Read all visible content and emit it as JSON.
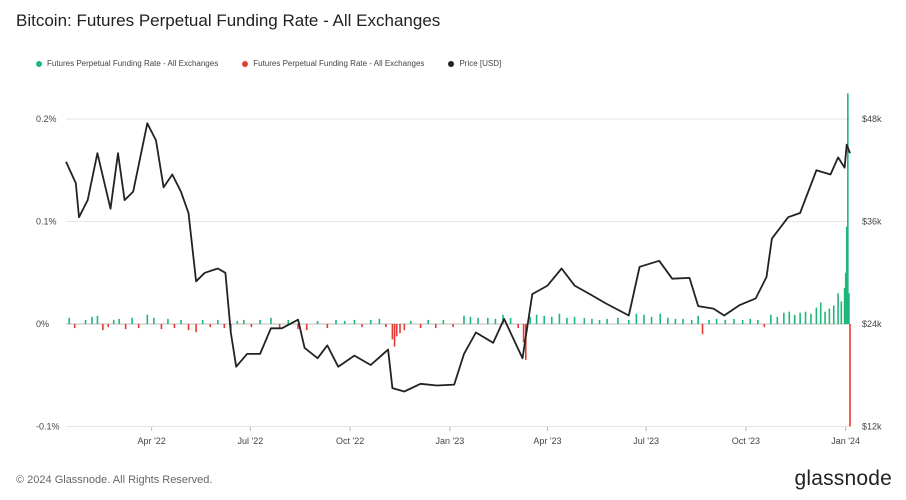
{
  "title": "Bitcoin: Futures Perpetual Funding Rate - All Exchanges",
  "footer": "© 2024 Glassnode. All Rights Reserved.",
  "brand": "glassnode",
  "colors": {
    "positive": "#1fb67a",
    "negative": "#e53935",
    "price": "#222222",
    "grid": "#e6e6e6"
  },
  "legend": [
    {
      "label": "Futures Perpetual Funding Rate - All Exchanges",
      "color": "#1fb67a"
    },
    {
      "label": "Futures Perpetual Funding Rate - All Exchanges",
      "color": "#e53935"
    },
    {
      "label": "Price [USD]",
      "color": "#222222"
    }
  ],
  "chart_data": {
    "type": "bar+line",
    "title": "Bitcoin: Futures Perpetual Funding Rate - All Exchanges",
    "x_tick_labels": [
      "Apr '22",
      "Jul '22",
      "Oct '22",
      "Jan '23",
      "Apr '23",
      "Jul '23",
      "Oct '23",
      "Jan '24"
    ],
    "x_range": [
      "2022-01-12",
      "2024-01-05"
    ],
    "left_axis": {
      "tick_labels": [
        "0.2%",
        "0.1%",
        "0%",
        "-0.1%"
      ],
      "ticks": [
        0.2,
        0.1,
        0,
        -0.1
      ],
      "range": [
        -0.1,
        0.2
      ]
    },
    "right_axis": {
      "tick_labels": [
        "$48k",
        "$36k",
        "$24k",
        "$12k"
      ],
      "ticks": [
        48000,
        36000,
        24000,
        12000
      ],
      "range": [
        12000,
        48000
      ]
    },
    "grid": true,
    "legend_position": "top-left",
    "series": [
      {
        "name": "Price [USD]",
        "kind": "line",
        "axis": "right",
        "points": [
          [
            "2022-01-12",
            43000
          ],
          [
            "2022-01-21",
            40500
          ],
          [
            "2022-01-24",
            36500
          ],
          [
            "2022-02-01",
            38500
          ],
          [
            "2022-02-10",
            44000
          ],
          [
            "2022-02-22",
            37500
          ],
          [
            "2022-03-01",
            44000
          ],
          [
            "2022-03-07",
            38500
          ],
          [
            "2022-03-15",
            39500
          ],
          [
            "2022-03-28",
            47500
          ],
          [
            "2022-04-05",
            45500
          ],
          [
            "2022-04-12",
            40000
          ],
          [
            "2022-04-20",
            41500
          ],
          [
            "2022-04-28",
            39500
          ],
          [
            "2022-05-05",
            37000
          ],
          [
            "2022-05-12",
            29000
          ],
          [
            "2022-05-20",
            30000
          ],
          [
            "2022-06-01",
            30500
          ],
          [
            "2022-06-08",
            30000
          ],
          [
            "2022-06-13",
            23000
          ],
          [
            "2022-06-18",
            19000
          ],
          [
            "2022-06-28",
            20500
          ],
          [
            "2022-07-10",
            20500
          ],
          [
            "2022-07-20",
            23500
          ],
          [
            "2022-07-30",
            23500
          ],
          [
            "2022-08-14",
            24500
          ],
          [
            "2022-08-20",
            21200
          ],
          [
            "2022-09-01",
            20000
          ],
          [
            "2022-09-10",
            21500
          ],
          [
            "2022-09-20",
            19000
          ],
          [
            "2022-10-05",
            20300
          ],
          [
            "2022-10-20",
            19200
          ],
          [
            "2022-11-05",
            21000
          ],
          [
            "2022-11-09",
            16500
          ],
          [
            "2022-11-20",
            16100
          ],
          [
            "2022-12-05",
            17000
          ],
          [
            "2022-12-20",
            16800
          ],
          [
            "2023-01-05",
            16900
          ],
          [
            "2023-01-14",
            20500
          ],
          [
            "2023-01-25",
            23000
          ],
          [
            "2023-02-10",
            21800
          ],
          [
            "2023-02-20",
            24600
          ],
          [
            "2023-03-09",
            20000
          ],
          [
            "2023-03-18",
            27500
          ],
          [
            "2023-04-01",
            28500
          ],
          [
            "2023-04-14",
            30500
          ],
          [
            "2023-04-26",
            28500
          ],
          [
            "2023-05-10",
            27500
          ],
          [
            "2023-05-25",
            26400
          ],
          [
            "2023-06-15",
            25000
          ],
          [
            "2023-06-25",
            30700
          ],
          [
            "2023-07-13",
            31400
          ],
          [
            "2023-07-25",
            29300
          ],
          [
            "2023-08-10",
            29400
          ],
          [
            "2023-08-18",
            26100
          ],
          [
            "2023-09-01",
            25800
          ],
          [
            "2023-09-11",
            25000
          ],
          [
            "2023-09-25",
            26200
          ],
          [
            "2023-10-10",
            27000
          ],
          [
            "2023-10-20",
            29500
          ],
          [
            "2023-10-25",
            34000
          ],
          [
            "2023-11-09",
            36500
          ],
          [
            "2023-11-20",
            37000
          ],
          [
            "2023-12-05",
            42000
          ],
          [
            "2023-12-18",
            41500
          ],
          [
            "2023-12-25",
            43500
          ],
          [
            "2023-12-31",
            42300
          ],
          [
            "2024-01-02",
            45000
          ],
          [
            "2024-01-05",
            44000
          ]
        ]
      },
      {
        "name": "Futures Perpetual Funding Rate - All Exchanges",
        "kind": "bar",
        "axis": "left",
        "note": "daily funding rate (%), green when positive, red when negative",
        "points": [
          [
            "2022-01-15",
            0.006
          ],
          [
            "2022-01-20",
            -0.004
          ],
          [
            "2022-01-30",
            0.004
          ],
          [
            "2022-02-05",
            0.007
          ],
          [
            "2022-02-10",
            0.008
          ],
          [
            "2022-02-15",
            -0.006
          ],
          [
            "2022-02-20",
            -0.003
          ],
          [
            "2022-02-25",
            0.004
          ],
          [
            "2022-03-02",
            0.005
          ],
          [
            "2022-03-08",
            -0.005
          ],
          [
            "2022-03-14",
            0.006
          ],
          [
            "2022-03-20",
            -0.004
          ],
          [
            "2022-03-28",
            0.009
          ],
          [
            "2022-04-03",
            0.006
          ],
          [
            "2022-04-10",
            -0.005
          ],
          [
            "2022-04-16",
            0.005
          ],
          [
            "2022-04-22",
            -0.004
          ],
          [
            "2022-04-28",
            0.004
          ],
          [
            "2022-05-05",
            -0.006
          ],
          [
            "2022-05-12",
            -0.008
          ],
          [
            "2022-05-18",
            0.004
          ],
          [
            "2022-05-25",
            -0.003
          ],
          [
            "2022-06-01",
            0.004
          ],
          [
            "2022-06-07",
            -0.004
          ],
          [
            "2022-06-13",
            -0.007
          ],
          [
            "2022-06-19",
            0.003
          ],
          [
            "2022-06-25",
            0.004
          ],
          [
            "2022-07-02",
            -0.003
          ],
          [
            "2022-07-10",
            0.004
          ],
          [
            "2022-07-20",
            0.006
          ],
          [
            "2022-07-28",
            -0.004
          ],
          [
            "2022-08-05",
            0.004
          ],
          [
            "2022-08-14",
            -0.005
          ],
          [
            "2022-08-22",
            -0.006
          ],
          [
            "2022-09-01",
            0.003
          ],
          [
            "2022-09-10",
            -0.004
          ],
          [
            "2022-09-18",
            0.004
          ],
          [
            "2022-09-26",
            0.003
          ],
          [
            "2022-10-05",
            0.004
          ],
          [
            "2022-10-12",
            -0.003
          ],
          [
            "2022-10-20",
            0.004
          ],
          [
            "2022-10-28",
            0.005
          ],
          [
            "2022-11-03",
            -0.003
          ],
          [
            "2022-11-09",
            -0.015
          ],
          [
            "2022-11-11",
            -0.022
          ],
          [
            "2022-11-13",
            -0.012
          ],
          [
            "2022-11-16",
            -0.009
          ],
          [
            "2022-11-20",
            -0.006
          ],
          [
            "2022-11-26",
            0.003
          ],
          [
            "2022-12-05",
            -0.004
          ],
          [
            "2022-12-12",
            0.004
          ],
          [
            "2022-12-19",
            -0.004
          ],
          [
            "2022-12-26",
            0.004
          ],
          [
            "2023-01-04",
            -0.003
          ],
          [
            "2023-01-14",
            0.008
          ],
          [
            "2023-01-20",
            0.007
          ],
          [
            "2023-01-27",
            0.006
          ],
          [
            "2023-02-05",
            0.006
          ],
          [
            "2023-02-12",
            0.005
          ],
          [
            "2023-02-19",
            0.009
          ],
          [
            "2023-02-26",
            0.006
          ],
          [
            "2023-03-05",
            -0.004
          ],
          [
            "2023-03-10",
            -0.018
          ],
          [
            "2023-03-12",
            -0.035
          ],
          [
            "2023-03-16",
            0.007
          ],
          [
            "2023-03-22",
            0.009
          ],
          [
            "2023-03-29",
            0.008
          ],
          [
            "2023-04-05",
            0.007
          ],
          [
            "2023-04-12",
            0.01
          ],
          [
            "2023-04-19",
            0.006
          ],
          [
            "2023-04-26",
            0.007
          ],
          [
            "2023-05-05",
            0.006
          ],
          [
            "2023-05-12",
            0.005
          ],
          [
            "2023-05-19",
            0.004
          ],
          [
            "2023-05-26",
            0.005
          ],
          [
            "2023-06-05",
            0.006
          ],
          [
            "2023-06-15",
            0.004
          ],
          [
            "2023-06-22",
            0.01
          ],
          [
            "2023-06-29",
            0.009
          ],
          [
            "2023-07-06",
            0.007
          ],
          [
            "2023-07-14",
            0.01
          ],
          [
            "2023-07-21",
            0.006
          ],
          [
            "2023-07-28",
            0.005
          ],
          [
            "2023-08-04",
            0.005
          ],
          [
            "2023-08-12",
            0.004
          ],
          [
            "2023-08-18",
            0.008
          ],
          [
            "2023-08-22",
            -0.01
          ],
          [
            "2023-08-28",
            0.004
          ],
          [
            "2023-09-04",
            0.005
          ],
          [
            "2023-09-12",
            0.004
          ],
          [
            "2023-09-20",
            0.005
          ],
          [
            "2023-09-28",
            0.004
          ],
          [
            "2023-10-05",
            0.005
          ],
          [
            "2023-10-12",
            0.004
          ],
          [
            "2023-10-18",
            -0.003
          ],
          [
            "2023-10-24",
            0.009
          ],
          [
            "2023-10-30",
            0.007
          ],
          [
            "2023-11-05",
            0.011
          ],
          [
            "2023-11-10",
            0.012
          ],
          [
            "2023-11-15",
            0.009
          ],
          [
            "2023-11-20",
            0.011
          ],
          [
            "2023-11-25",
            0.012
          ],
          [
            "2023-11-30",
            0.01
          ],
          [
            "2023-12-05",
            0.016
          ],
          [
            "2023-12-09",
            0.021
          ],
          [
            "2023-12-13",
            0.012
          ],
          [
            "2023-12-17",
            0.015
          ],
          [
            "2023-12-21",
            0.018
          ],
          [
            "2023-12-25",
            0.03
          ],
          [
            "2023-12-28",
            0.022
          ],
          [
            "2023-12-31",
            0.035
          ],
          [
            "2024-01-01",
            0.05
          ],
          [
            "2024-01-02",
            0.095
          ],
          [
            "2024-01-03",
            0.225
          ],
          [
            "2024-01-04",
            0.03
          ],
          [
            "2024-01-05",
            -0.1
          ]
        ]
      }
    ]
  }
}
